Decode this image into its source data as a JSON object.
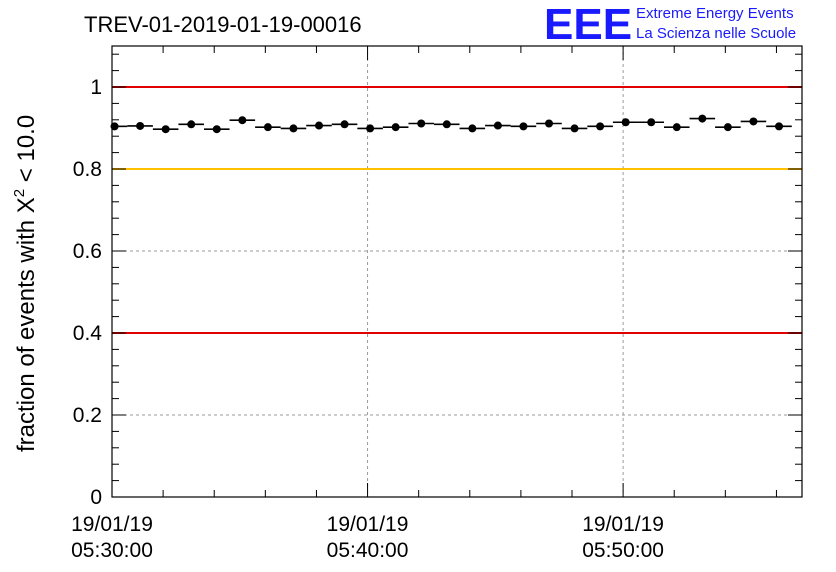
{
  "chart_data": {
    "type": "scatter",
    "title": "TREV-01-2019-01-19-00016",
    "ylabel_prefix": "fraction of events with ",
    "ylabel_symbol": "X",
    "ylabel_exponent": "2",
    "ylabel_suffix": " < 10.0",
    "xlabel": "",
    "x_unit": "minutes after 05:29:40",
    "xlim": [
      0,
      27
    ],
    "ylim": [
      0,
      1.1
    ],
    "grid": true,
    "yticks": [
      {
        "value": 0,
        "label": "0"
      },
      {
        "value": 0.2,
        "label": "0.2"
      },
      {
        "value": 0.4,
        "label": "0.4"
      },
      {
        "value": 0.6,
        "label": "0.6"
      },
      {
        "value": 0.8,
        "label": "0.8"
      },
      {
        "value": 1,
        "label": "1"
      }
    ],
    "xticks": [
      {
        "value": 0,
        "date": "19/01/19",
        "time": "05:30:00"
      },
      {
        "value": 10,
        "date": "19/01/19",
        "time": "05:40:00"
      },
      {
        "value": 20,
        "date": "19/01/19",
        "time": "05:50:00"
      }
    ],
    "reference_lines": [
      {
        "name": "upper-limit",
        "y": 1.0,
        "color": "#e00000"
      },
      {
        "name": "warning-level",
        "y": 0.8,
        "color": "#ffc000"
      },
      {
        "name": "lower-limit",
        "y": 0.4,
        "color": "#e00000"
      }
    ],
    "series": [
      {
        "name": "fraction",
        "bin_width": 1,
        "x": [
          0.1,
          1.1,
          2.1,
          3.1,
          4.1,
          5.1,
          6.1,
          7.1,
          8.1,
          9.1,
          10.1,
          11.1,
          12.1,
          13.1,
          14.1,
          15.1,
          16.1,
          17.1,
          18.1,
          19.1,
          20.1,
          21.1,
          22.1,
          23.1,
          24.1,
          25.1,
          26.1
        ],
        "values": [
          0.904,
          0.905,
          0.897,
          0.909,
          0.897,
          0.919,
          0.902,
          0.899,
          0.906,
          0.909,
          0.899,
          0.902,
          0.911,
          0.909,
          0.899,
          0.906,
          0.904,
          0.911,
          0.899,
          0.904,
          0.914,
          0.914,
          0.902,
          0.923,
          0.902,
          0.916,
          0.904
        ]
      }
    ]
  },
  "logo": {
    "mark": "EEE",
    "line1": "Extreme Energy Events",
    "line2": "La Scienza nelle Scuole",
    "color": "#1a1aff"
  },
  "colors": {
    "axis": "#000000",
    "grid": "#9a9a9a",
    "marker": "#000000"
  }
}
